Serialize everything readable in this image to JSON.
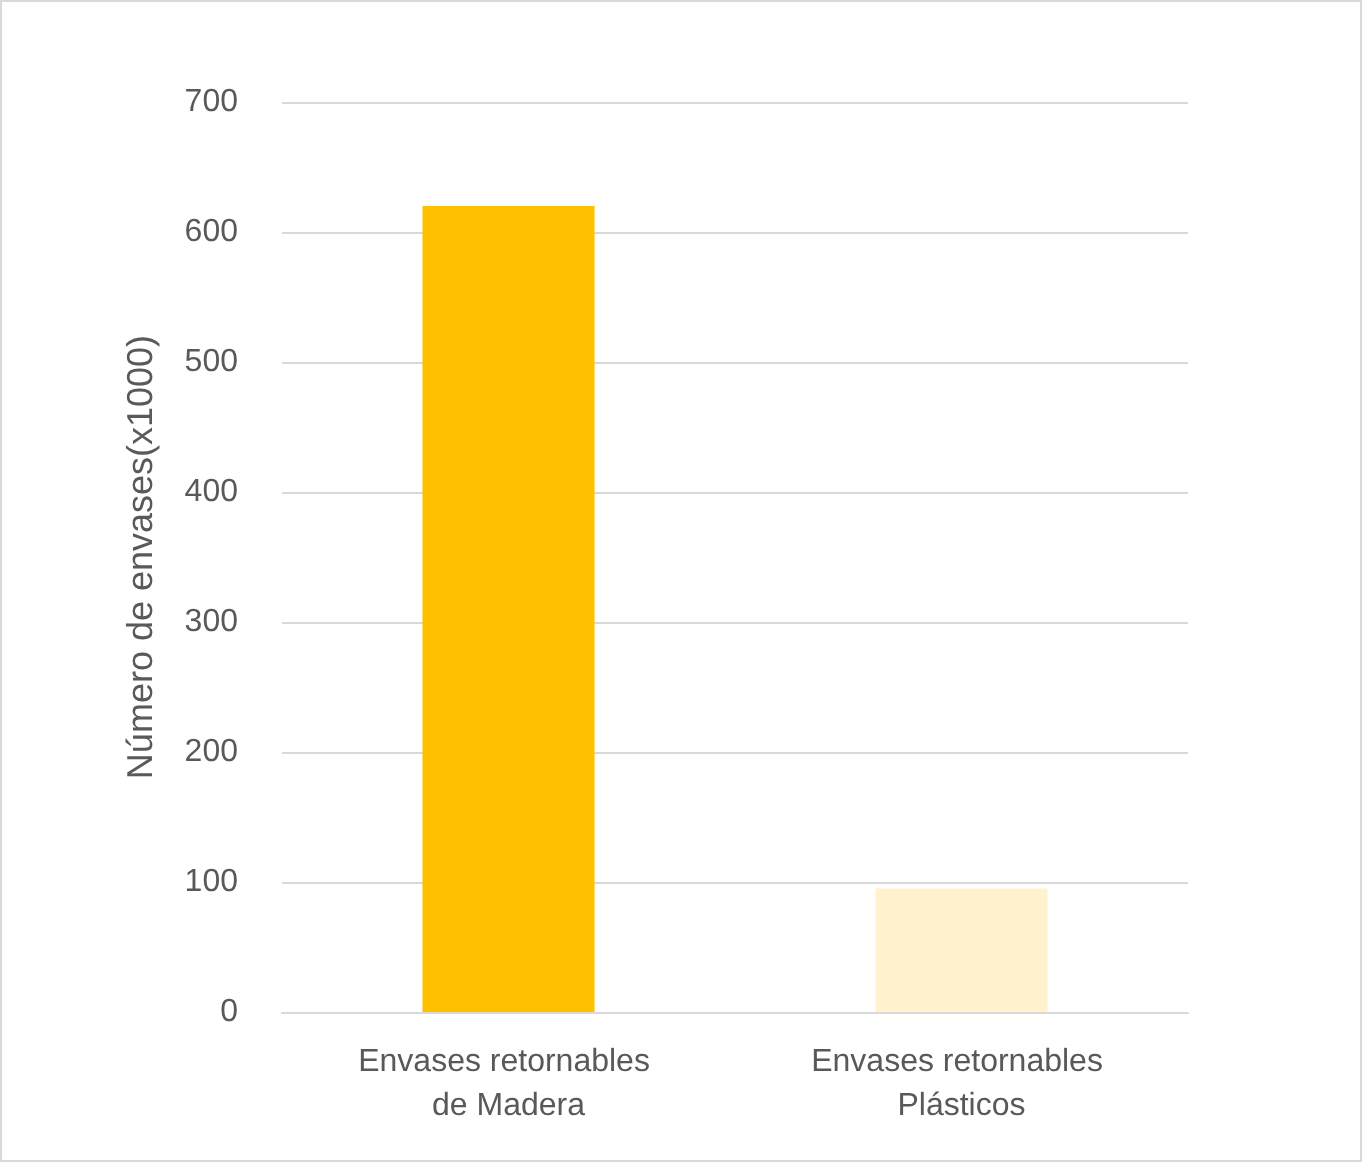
{
  "chart_data": {
    "type": "bar",
    "ylabel": "Número de envases(x1000)",
    "categories": [
      "Envases retornables de Madera",
      "Envases retornables Plásticos"
    ],
    "values": [
      620,
      95
    ],
    "colors": [
      "#ffc000",
      "#fff2cc"
    ],
    "ylim": [
      0,
      700
    ],
    "yticks": [
      0,
      100,
      200,
      300,
      400,
      500,
      600,
      700
    ],
    "grid": "y"
  }
}
